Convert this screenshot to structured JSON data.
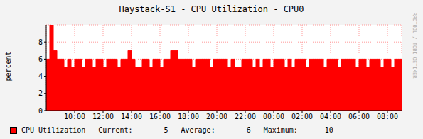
{
  "chart_data": {
    "type": "area",
    "title": "Haystack-S1 - CPU Utilization - CPU0",
    "y_label": "percent",
    "annotations": [
      "RRDTOOL / TOBI OETIKER"
    ],
    "x": [
      8,
      8.25,
      8.5,
      8.75,
      9,
      9.25,
      9.5,
      9.75,
      10,
      10.25,
      10.5,
      10.75,
      11,
      11.25,
      11.5,
      11.75,
      12,
      12.25,
      12.5,
      12.75,
      13,
      13.25,
      13.5,
      13.75,
      14,
      14.25,
      14.5,
      14.75,
      15,
      15.25,
      15.5,
      15.75,
      16,
      16.25,
      16.5,
      16.75,
      17,
      17.25,
      17.5,
      17.75,
      18,
      18.25,
      18.5,
      18.75,
      19,
      19.25,
      19.5,
      19.75,
      20,
      20.25,
      20.5,
      20.75,
      21,
      21.25,
      21.5,
      21.75,
      22,
      22.25,
      22.5,
      22.75,
      23,
      23.25,
      23.5,
      23.75,
      24,
      24.25,
      24.5,
      24.75,
      25,
      25.25,
      25.5,
      25.75,
      26,
      26.25,
      26.5,
      26.75,
      27,
      27.25,
      27.5,
      27.75,
      28,
      28.25,
      28.5,
      28.75,
      29,
      29.25,
      29.5,
      29.75,
      30,
      30.25,
      30.5,
      30.75,
      31,
      31.25,
      31.5,
      31.75,
      32,
      32.25,
      32.5,
      32.75,
      33
    ],
    "series": [
      {
        "name": "CPU Utilization",
        "color": "#ff0000",
        "values": [
          6,
          10,
          7,
          6,
          6,
          5,
          6,
          5,
          6,
          6,
          5,
          6,
          6,
          5,
          6,
          6,
          5,
          6,
          6,
          6,
          5,
          6,
          6,
          7,
          6,
          5,
          5,
          6,
          6,
          5,
          6,
          6,
          5,
          6,
          6,
          7,
          7,
          6,
          6,
          6,
          6,
          5,
          6,
          6,
          6,
          6,
          5,
          6,
          6,
          6,
          6,
          5,
          6,
          5,
          5,
          6,
          6,
          6,
          5,
          6,
          5,
          6,
          6,
          5,
          6,
          6,
          6,
          5,
          6,
          5,
          6,
          6,
          6,
          5,
          6,
          6,
          6,
          6,
          5,
          6,
          6,
          6,
          5,
          6,
          6,
          6,
          6,
          5,
          6,
          6,
          5,
          6,
          6,
          6,
          5,
          6,
          6,
          5,
          6,
          6,
          5
        ]
      }
    ],
    "legend_stats": [
      {
        "label": "Current:",
        "value": 5
      },
      {
        "label": "Average:",
        "value": 6
      },
      {
        "label": "Maximum:",
        "value": 10
      }
    ],
    "xlim": [
      8,
      33
    ],
    "xticks": [
      {
        "value": 10,
        "label": "10:00"
      },
      {
        "value": 12,
        "label": "12:00"
      },
      {
        "value": 14,
        "label": "14:00"
      },
      {
        "value": 16,
        "label": "16:00"
      },
      {
        "value": 18,
        "label": "18:00"
      },
      {
        "value": 20,
        "label": "20:00"
      },
      {
        "value": 22,
        "label": "22:00"
      },
      {
        "value": 24,
        "label": "00:00"
      },
      {
        "value": 26,
        "label": "02:00"
      },
      {
        "value": 28,
        "label": "04:00"
      },
      {
        "value": 30,
        "label": "06:00"
      },
      {
        "value": 32,
        "label": "08:00"
      }
    ],
    "ylim": [
      0,
      10
    ],
    "yticks": [
      0,
      2,
      4,
      6,
      8
    ],
    "grid": true,
    "legend": "bottom left"
  }
}
